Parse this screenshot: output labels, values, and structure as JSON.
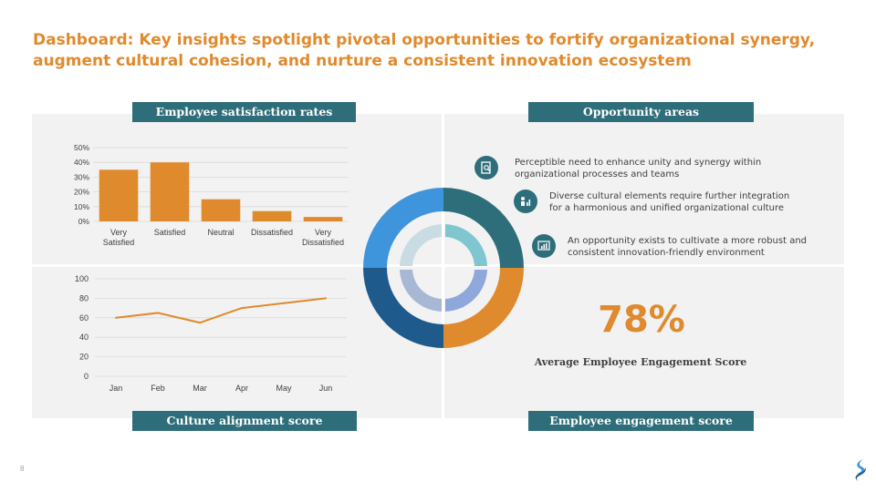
{
  "title": "Dashboard:  Key insights spotlight pivotal opportunities to fortify organizational synergy, augment cultural cohesion, and nurture a consistent innovation ecosystem",
  "sections": {
    "satisfaction": "Employee satisfaction rates",
    "opportunity": "Opportunity areas",
    "culture": "Culture alignment score",
    "engagement": "Employee engagement score"
  },
  "colors": {
    "accent": "#E08A2E",
    "teal": "#2E6E7A",
    "blue": "#3F95DB",
    "navy": "#1F5A8C"
  },
  "chart_data": [
    {
      "type": "bar",
      "categories": [
        [
          "Very",
          "Satisfied"
        ],
        [
          "Satisfied"
        ],
        [
          "Neutral"
        ],
        [
          "Dissatisfied"
        ],
        [
          "Very",
          "Dissatisfied"
        ]
      ],
      "values": [
        35,
        40,
        15,
        7,
        3
      ],
      "ylim": [
        0,
        50
      ],
      "yticks": [
        "0%",
        "10%",
        "20%",
        "30%",
        "40%",
        "50%"
      ],
      "grid": true
    },
    {
      "type": "line",
      "categories": [
        "Jan",
        "Feb",
        "Mar",
        "Apr",
        "May",
        "Jun"
      ],
      "values": [
        60,
        65,
        55,
        70,
        75,
        80
      ],
      "ylim": [
        0,
        100
      ],
      "yticks": [
        "0",
        "20",
        "40",
        "60",
        "80",
        "100"
      ],
      "grid": true
    }
  ],
  "opportunities": [
    {
      "icon": "document-magnify-icon",
      "line1": "Perceptible need to enhance unity and synergy within",
      "line2": "organizational processes and teams"
    },
    {
      "icon": "people-chart-icon",
      "line1": "Diverse cultural elements require further integration",
      "line2": "for a harmonious and unified organizational culture"
    },
    {
      "icon": "presentation-chart-icon",
      "line1": "An opportunity exists to cultivate a more robust and",
      "line2": "consistent innovation-friendly environment"
    }
  ],
  "engagement": {
    "value": "78%",
    "label": "Average Employee Engagement Score"
  },
  "page_number": "8"
}
